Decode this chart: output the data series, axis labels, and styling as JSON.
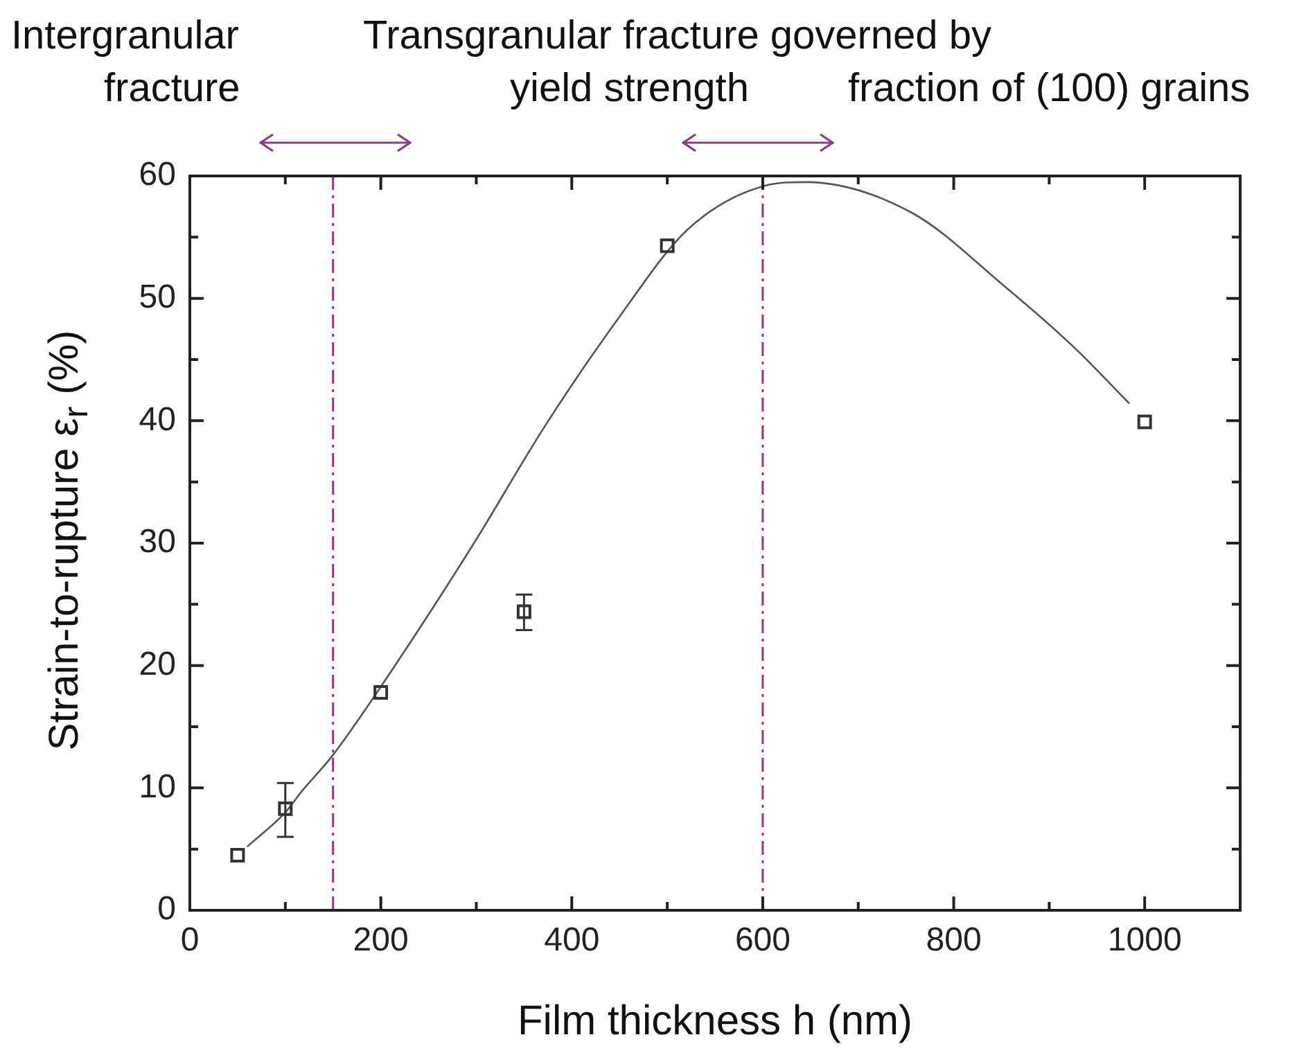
{
  "chart_data": {
    "type": "scatter",
    "xlabel": "Film thickness h (nm)",
    "ylabel": "Strain-to-rupture ε$_{r}$ (%)",
    "annotations": [
      "Intergranular",
      "fracture",
      "Transgranular fracture governed by",
      "yield strength",
      "fraction of (100) grains"
    ],
    "x": [
      50,
      100,
      200,
      350,
      500,
      1000
    ],
    "series": [
      {
        "color": "#333333",
        "values": [
          4.5,
          8.3,
          17.8,
          24.4,
          54.3,
          39.9
        ],
        "errors": [
          null,
          [
            6.0,
            10.4
          ],
          null,
          [
            22.9,
            25.8
          ],
          null,
          null
        ]
      },
      {
        "type": "line",
        "marker": "none",
        "color": "#555555",
        "x": [
          60,
          100,
          117,
          149,
          214,
          296,
          373,
          450,
          521,
          602,
          645,
          756,
          853,
          926,
          984
        ],
        "values": [
          5.2,
          8.0,
          9.7,
          12.6,
          19.9,
          29.8,
          39.7,
          48.5,
          55.6,
          59.2,
          59.5,
          57,
          51,
          46,
          41.4
        ]
      }
    ],
    "ref_lines": [
      {
        "axis": "x",
        "value": 150,
        "color": "#a0307f",
        "line_style": "dashdot"
      },
      {
        "axis": "x",
        "value": 600,
        "color": "#a0307f",
        "line_style": "dashdot"
      }
    ],
    "xlim": [
      0,
      1100
    ],
    "ylim": [
      0,
      60
    ],
    "xticks": [
      0,
      {
        "value": 100,
        "label": null
      },
      200,
      {
        "value": 300,
        "label": null
      },
      400,
      {
        "value": 500,
        "label": null
      },
      600,
      {
        "value": 700,
        "label": null
      },
      800,
      {
        "value": 900,
        "label": null
      },
      1000
    ],
    "yticks": [
      0,
      {
        "value": 5,
        "label": null
      },
      10,
      {
        "value": 15,
        "label": null
      },
      20,
      {
        "value": 25,
        "label": null
      },
      30,
      {
        "value": 35,
        "label": null
      },
      40,
      {
        "value": 45,
        "label": null
      },
      50,
      {
        "value": 55,
        "label": null
      },
      60
    ],
    "marker": "square",
    "grid": false,
    "legend": false
  }
}
